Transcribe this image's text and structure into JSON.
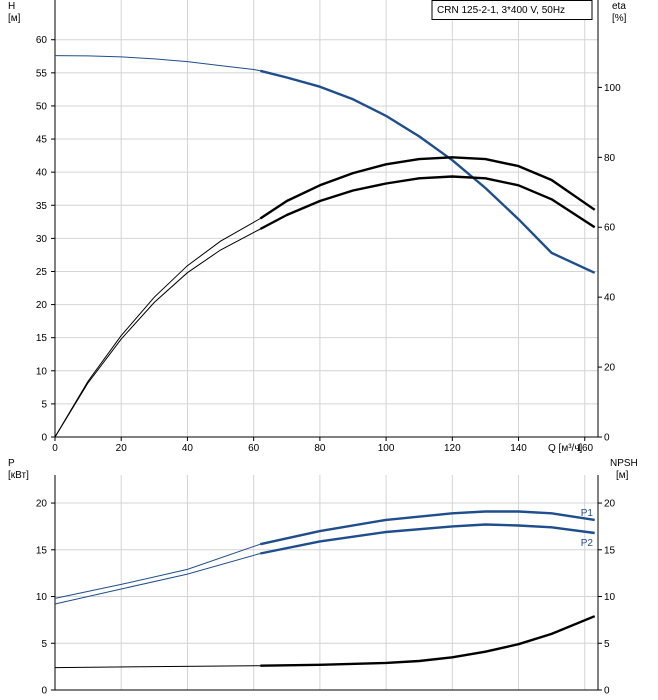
{
  "chart_data": [
    {
      "type": "line",
      "panel": "top",
      "title": "CRN 125-2-1, 3*400 V, 50Hz",
      "legend_position": "top-right",
      "grid": true,
      "x_axis": {
        "label": "Q [м³/ч]",
        "range": [
          0,
          164
        ],
        "ticks": [
          "0",
          "20",
          "40",
          "60",
          "80",
          "100",
          "120",
          "140",
          "160"
        ]
      },
      "y_left": {
        "label_top": "H",
        "label_bottom": "[м]",
        "range": [
          0,
          66
        ],
        "ticks": [
          "0",
          "5",
          "10",
          "15",
          "20",
          "25",
          "30",
          "35",
          "40",
          "45",
          "50",
          "55",
          "60"
        ]
      },
      "y_right": {
        "label_top": "eta",
        "label_bottom": "[%]",
        "range": [
          0,
          125
        ],
        "ticks": [
          "0",
          "20",
          "40",
          "60",
          "80",
          "100"
        ]
      },
      "series": [
        {
          "key": "H",
          "axis": "left",
          "color": "#1f4e8c",
          "points": [
            [
              0,
              57.6
            ],
            [
              10,
              57.55
            ],
            [
              20,
              57.4
            ],
            [
              30,
              57.1
            ],
            [
              40,
              56.7
            ],
            [
              50,
              56.1
            ],
            [
              60,
              55.5
            ],
            [
              62,
              55.3
            ],
            [
              70,
              54.3
            ],
            [
              80,
              52.9
            ],
            [
              90,
              51.0
            ],
            [
              100,
              48.5
            ],
            [
              110,
              45.4
            ],
            [
              120,
              41.8
            ],
            [
              130,
              37.6
            ],
            [
              140,
              32.9
            ],
            [
              150,
              27.8
            ],
            [
              163,
              24.8
            ]
          ],
          "bold_range": [
            62,
            163
          ]
        },
        {
          "key": "eta_total",
          "axis": "right",
          "color": "#000000",
          "points": [
            [
              0,
              0
            ],
            [
              10,
              16
            ],
            [
              20,
              29
            ],
            [
              30,
              40
            ],
            [
              40,
              49
            ],
            [
              50,
              56
            ],
            [
              62,
              62.5
            ],
            [
              70,
              67.5
            ],
            [
              80,
              72
            ],
            [
              90,
              75.5
            ],
            [
              100,
              78
            ],
            [
              110,
              79.5
            ],
            [
              120,
              80
            ],
            [
              130,
              79.5
            ],
            [
              140,
              77.5
            ],
            [
              150,
              73.5
            ],
            [
              163,
              65
            ]
          ],
          "bold_range": [
            62,
            163
          ]
        },
        {
          "key": "eta_hydraulic",
          "axis": "right",
          "color": "#000000",
          "points": [
            [
              0,
              0
            ],
            [
              10,
              15.5
            ],
            [
              20,
              28
            ],
            [
              30,
              38.5
            ],
            [
              40,
              47
            ],
            [
              50,
              53.5
            ],
            [
              62,
              59.5
            ],
            [
              70,
              63.5
            ],
            [
              80,
              67.5
            ],
            [
              90,
              70.5
            ],
            [
              100,
              72.5
            ],
            [
              110,
              74
            ],
            [
              120,
              74.5
            ],
            [
              130,
              74
            ],
            [
              140,
              72
            ],
            [
              150,
              68
            ],
            [
              163,
              60
            ]
          ],
          "bold_range": [
            62,
            163
          ]
        }
      ]
    },
    {
      "type": "line",
      "panel": "bottom",
      "grid": true,
      "x_axis": {
        "range": [
          0,
          164
        ]
      },
      "y_left": {
        "label_top": "P",
        "label_bottom": "[кВт]",
        "range": [
          0,
          23
        ],
        "ticks": [
          "0",
          "5",
          "10",
          "15",
          "20"
        ]
      },
      "y_right": {
        "label_top": "NPSH",
        "label_bottom": "[м]",
        "range": [
          0,
          23
        ],
        "ticks": [
          "0",
          "5",
          "10",
          "15",
          "20"
        ]
      },
      "series": [
        {
          "key": "P1",
          "name": "P1",
          "axis": "left",
          "color": "#1f4e8c",
          "points": [
            [
              0,
              9.8
            ],
            [
              20,
              11.3
            ],
            [
              40,
              12.9
            ],
            [
              62,
              15.6
            ],
            [
              80,
              17.0
            ],
            [
              100,
              18.2
            ],
            [
              120,
              18.9
            ],
            [
              130,
              19.1
            ],
            [
              140,
              19.1
            ],
            [
              150,
              18.9
            ],
            [
              163,
              18.2
            ]
          ],
          "bold_range": [
            62,
            163
          ]
        },
        {
          "key": "P2",
          "name": "P2",
          "axis": "left",
          "color": "#1f4e8c",
          "points": [
            [
              0,
              9.2
            ],
            [
              20,
              10.8
            ],
            [
              40,
              12.4
            ],
            [
              62,
              14.6
            ],
            [
              80,
              15.9
            ],
            [
              100,
              16.9
            ],
            [
              120,
              17.5
            ],
            [
              130,
              17.7
            ],
            [
              140,
              17.6
            ],
            [
              150,
              17.4
            ],
            [
              163,
              16.8
            ]
          ],
          "bold_range": [
            62,
            163
          ]
        },
        {
          "key": "NPSH",
          "axis": "right",
          "color": "#000000",
          "points": [
            [
              0,
              2.4
            ],
            [
              30,
              2.5
            ],
            [
              62,
              2.6
            ],
            [
              80,
              2.7
            ],
            [
              100,
              2.9
            ],
            [
              110,
              3.1
            ],
            [
              120,
              3.5
            ],
            [
              130,
              4.1
            ],
            [
              140,
              4.9
            ],
            [
              150,
              6.0
            ],
            [
              163,
              7.9
            ]
          ],
          "bold_range": [
            62,
            163
          ]
        }
      ]
    }
  ]
}
